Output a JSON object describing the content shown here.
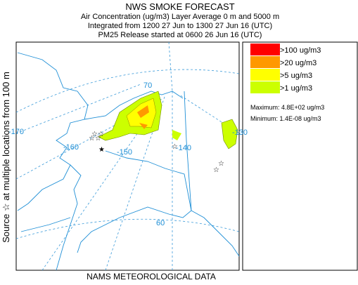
{
  "header": {
    "title": "NWS SMOKE FORECAST",
    "lines": [
      "Air Concentration (ug/m3) Layer Average    0 m and  5000 m",
      "Integrated from 1200 27 Jun to 1300 27 Jun 16 (UTC)",
      "PM25 Release started at 0600 26 Jun 16 (UTC)"
    ]
  },
  "side_label": "Source ☆   at multiple locations   from   100 m",
  "footer": "NAMS METEOROLOGICAL DATA",
  "map_labels": [
    "70",
    "-170",
    "-160",
    "-150",
    "-140",
    "-130",
    "60"
  ],
  "legend": {
    "items": [
      {
        "label": ">100 ug/m3",
        "color": "#ff0000"
      },
      {
        "label": ">20 ug/m3",
        "color": "#ff9900"
      },
      {
        "label": ">5 ug/m3",
        "color": "#ffff00"
      },
      {
        "label": ">1 ug/m3",
        "color": "#ccff00"
      }
    ],
    "maximum": "Maximum: 4.8E+02 ug/m3",
    "minimum": "Minimum: 1.4E-08 ug/m3"
  }
}
